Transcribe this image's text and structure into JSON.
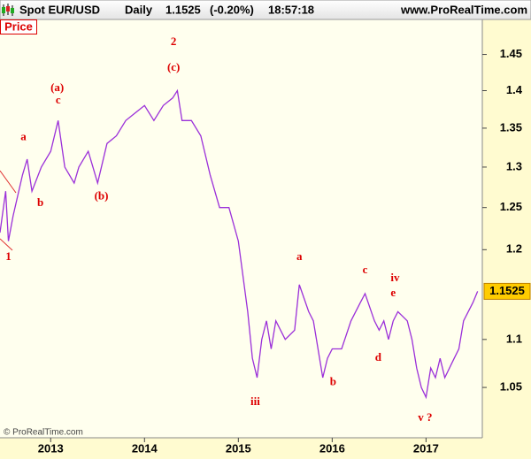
{
  "chart_data": {
    "type": "line",
    "symbol": "Spot EUR/USD",
    "period": "Daily",
    "last": 1.1525,
    "change": "(-0.20%)",
    "time": "18:57:18",
    "site": "www.ProRealTime.com",
    "panel_label": "Price",
    "copyright": "© ProRealTime.com",
    "color": "#9b30d9",
    "log_scale": true,
    "grid": false,
    "xlim": [
      2012.46,
      2017.6
    ],
    "xticks": [
      2013,
      2014,
      2015,
      2016,
      2017
    ],
    "ylim": [
      1.0,
      1.5
    ],
    "yticks": [
      1.05,
      1.1,
      1.2,
      1.25,
      1.3,
      1.35,
      1.4,
      1.45
    ],
    "x": [
      2012.46,
      2012.52,
      2012.55,
      2012.6,
      2012.7,
      2012.75,
      2012.8,
      2012.9,
      2013.0,
      2013.08,
      2013.15,
      2013.25,
      2013.3,
      2013.4,
      2013.45,
      2013.5,
      2013.6,
      2013.7,
      2013.8,
      2013.9,
      2014.0,
      2014.1,
      2014.2,
      2014.3,
      2014.35,
      2014.4,
      2014.5,
      2014.6,
      2014.7,
      2014.8,
      2014.9,
      2015.0,
      2015.1,
      2015.15,
      2015.2,
      2015.25,
      2015.3,
      2015.35,
      2015.4,
      2015.5,
      2015.6,
      2015.65,
      2015.75,
      2015.8,
      2015.9,
      2015.95,
      2016.0,
      2016.1,
      2016.2,
      2016.3,
      2016.35,
      2016.45,
      2016.5,
      2016.55,
      2016.6,
      2016.65,
      2016.7,
      2016.8,
      2016.85,
      2016.9,
      2016.95,
      2017.0,
      2017.05,
      2017.1,
      2017.15,
      2017.2,
      2017.3,
      2017.35,
      2017.4,
      2017.45,
      2017.5,
      2017.55
    ],
    "values": [
      1.22,
      1.27,
      1.21,
      1.24,
      1.29,
      1.31,
      1.27,
      1.3,
      1.32,
      1.36,
      1.3,
      1.28,
      1.3,
      1.32,
      1.3,
      1.28,
      1.33,
      1.34,
      1.36,
      1.37,
      1.38,
      1.36,
      1.38,
      1.39,
      1.4,
      1.36,
      1.36,
      1.34,
      1.29,
      1.25,
      1.25,
      1.21,
      1.13,
      1.08,
      1.06,
      1.1,
      1.12,
      1.09,
      1.12,
      1.1,
      1.11,
      1.16,
      1.13,
      1.12,
      1.06,
      1.08,
      1.09,
      1.09,
      1.12,
      1.14,
      1.15,
      1.12,
      1.11,
      1.12,
      1.1,
      1.12,
      1.13,
      1.12,
      1.1,
      1.07,
      1.05,
      1.04,
      1.07,
      1.06,
      1.08,
      1.06,
      1.08,
      1.09,
      1.12,
      1.13,
      1.14,
      1.1525
    ],
    "annotations": [
      {
        "text": "1",
        "x": 2012.55,
        "y": 1.191
      },
      {
        "text": "a",
        "x": 2012.71,
        "y": 1.338
      },
      {
        "text": "b",
        "x": 2012.89,
        "y": 1.255
      },
      {
        "text": "(a)",
        "x": 2013.07,
        "y": 1.403
      },
      {
        "text": "c",
        "x": 2013.08,
        "y": 1.386
      },
      {
        "text": "(b)",
        "x": 2013.54,
        "y": 1.263
      },
      {
        "text": "2",
        "x": 2014.31,
        "y": 1.467
      },
      {
        "text": "(c)",
        "x": 2014.31,
        "y": 1.431
      },
      {
        "text": "iii",
        "x": 2015.18,
        "y": 1.035
      },
      {
        "text": "a",
        "x": 2015.65,
        "y": 1.191
      },
      {
        "text": "b",
        "x": 2016.01,
        "y": 1.055
      },
      {
        "text": "c",
        "x": 2016.35,
        "y": 1.176
      },
      {
        "text": "d",
        "x": 2016.49,
        "y": 1.08
      },
      {
        "text": "iv",
        "x": 2016.67,
        "y": 1.167
      },
      {
        "text": "e",
        "x": 2016.65,
        "y": 1.15
      },
      {
        "text": "v ?",
        "x": 2016.99,
        "y": 1.019
      }
    ]
  }
}
